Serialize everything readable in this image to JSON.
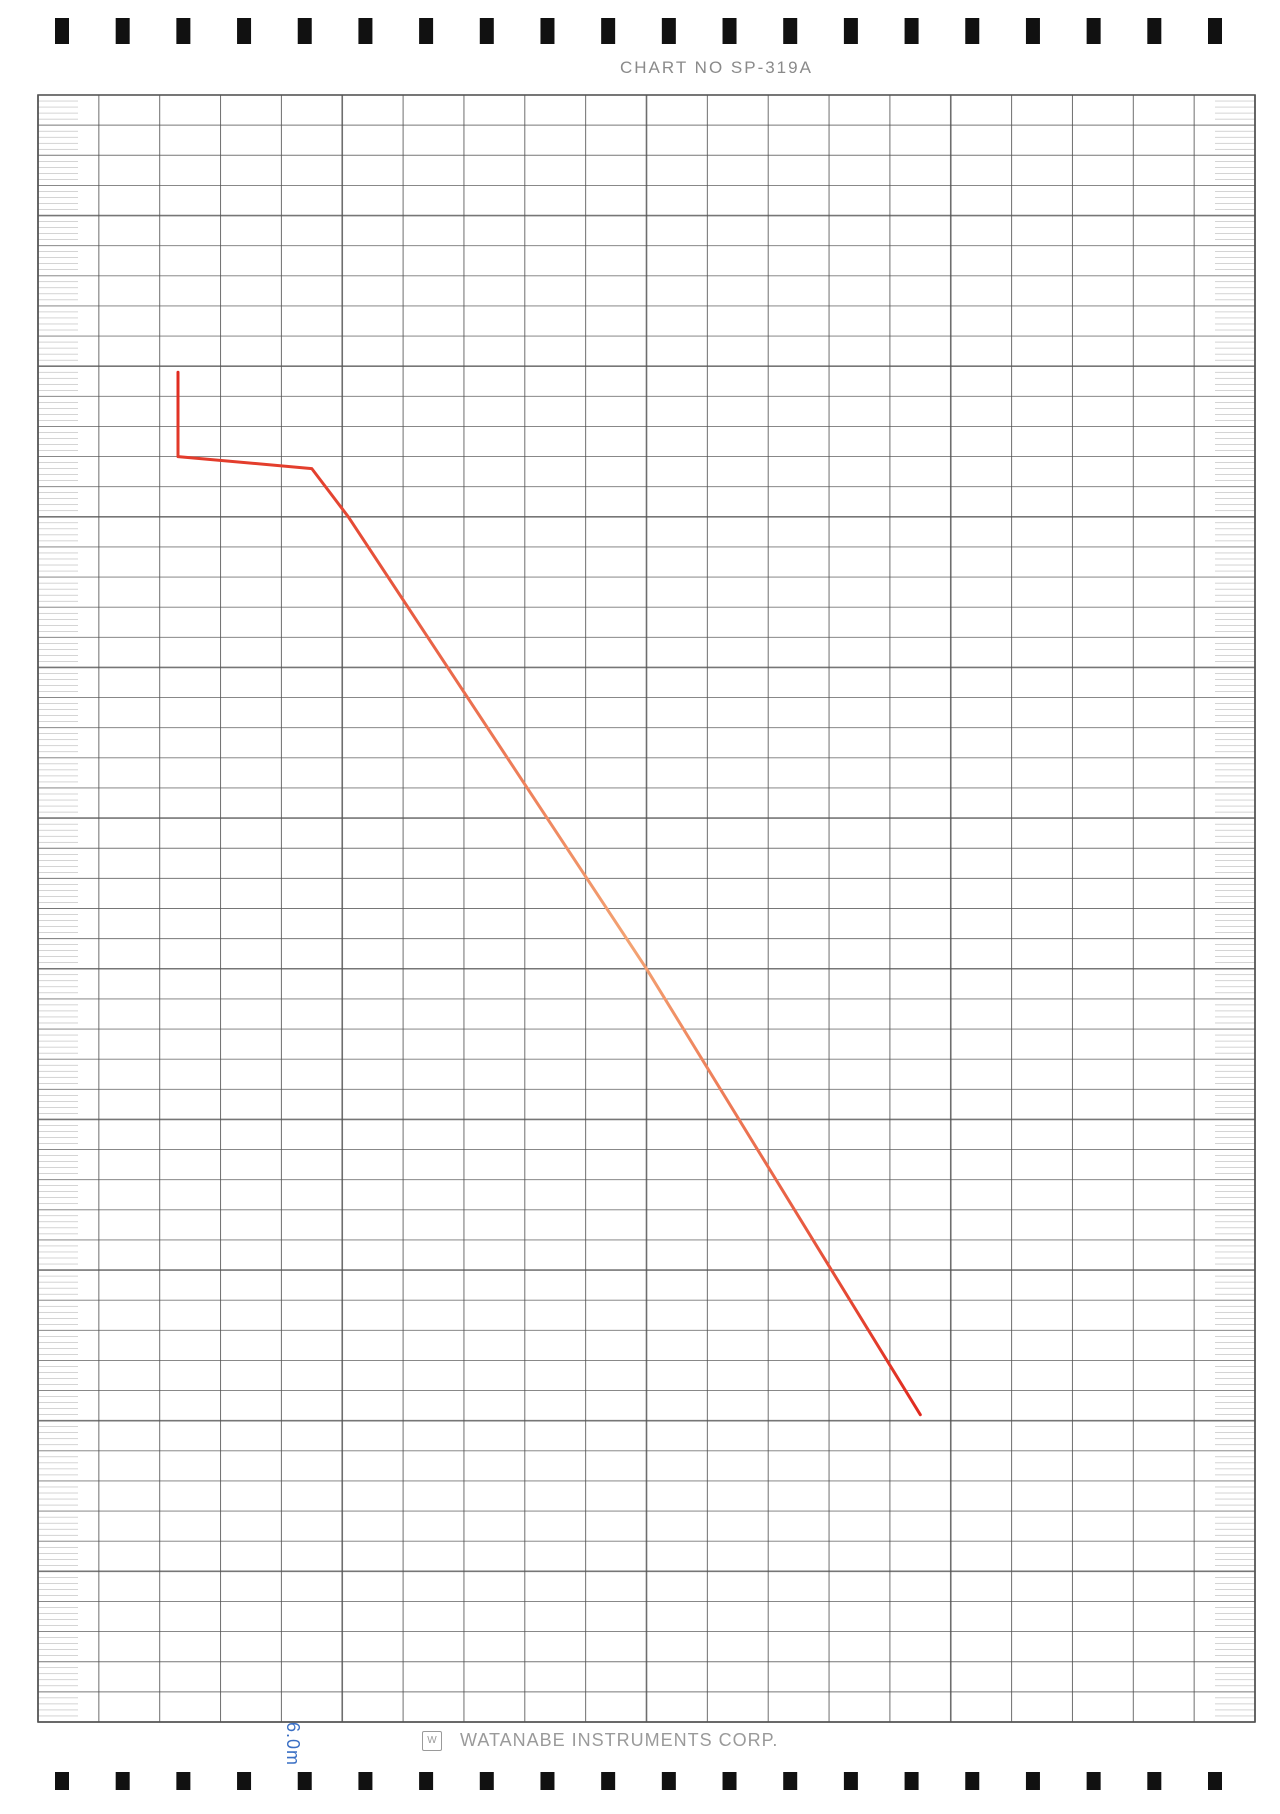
{
  "chart_data": {
    "type": "line",
    "title": "CHART NO SP-319A",
    "manufacturer": "WATANABE INSTRUMENTS CORP.",
    "manufacturer_logo": "W",
    "annotation": "6.0m",
    "grid": true,
    "trace_colors": {
      "start": "#e02a1f",
      "end": "#f3a373"
    },
    "series": [
      {
        "color": "#e02a1f",
        "points": [
          {
            "x": 2.3,
            "y": 44.8
          },
          {
            "x": 2.3,
            "y": 42.0
          },
          {
            "x": 4.5,
            "y": 41.6
          },
          {
            "x": 5.1,
            "y": 40.0
          },
          {
            "x": 10.0,
            "y": 25.0
          },
          {
            "x": 14.5,
            "y": 10.2
          }
        ]
      }
    ],
    "xlim": [
      0,
      20
    ],
    "ylim": [
      0,
      54
    ]
  },
  "sprocket_color": "#111111",
  "grid_color": "#555555"
}
